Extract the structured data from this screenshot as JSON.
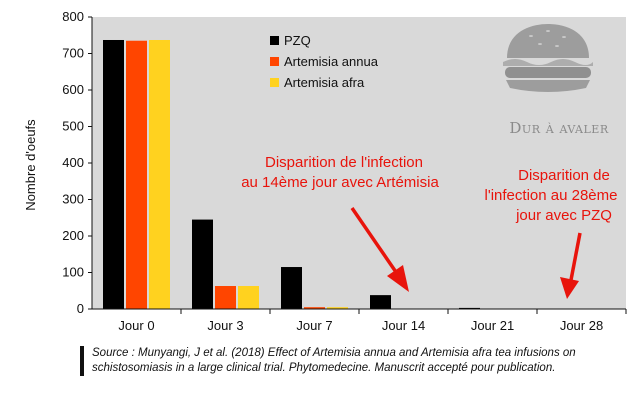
{
  "chart_data": {
    "type": "bar",
    "title": "",
    "xlabel": "",
    "ylabel": "Nombre d'oeufs",
    "ylim": [
      0,
      800
    ],
    "yticks": [
      0,
      100,
      200,
      300,
      400,
      500,
      600,
      700,
      800
    ],
    "categories": [
      "Jour 0",
      "Jour 3",
      "Jour 7",
      "Jour 14",
      "Jour 21",
      "Jour 28"
    ],
    "series": [
      {
        "name": "PZQ",
        "color": "#000000",
        "values": [
          737,
          245,
          115,
          38,
          3,
          0
        ]
      },
      {
        "name": "Artemisia annua",
        "color": "#ff4500",
        "values": [
          735,
          63,
          5,
          0,
          0,
          0
        ]
      },
      {
        "name": "Artemisia afra",
        "color": "#ffd21f",
        "values": [
          737,
          63,
          5,
          0,
          0,
          0
        ]
      }
    ],
    "legend_position": "top-center",
    "grid": false,
    "plot_background": "#d9d9d9",
    "annotations": [
      {
        "lines": [
          "Disparition de l'infection",
          "au 14ème jour avec Artémisia"
        ],
        "color": "#e8140c"
      },
      {
        "lines": [
          "Disparition de",
          "l'infection au 28ème",
          "jour avec PZQ"
        ],
        "color": "#e8140c"
      }
    ]
  },
  "watermark": {
    "text": "Dur à avaler",
    "icon": "burger-icon"
  },
  "source_note": "Source : Munyangi, J et al. (2018) Effect of Artemisia annua and Artemisia afra tea infusions on schistosomiasis in a large clinical trial. Phytomedecine. Manuscrit accepté pour publication."
}
